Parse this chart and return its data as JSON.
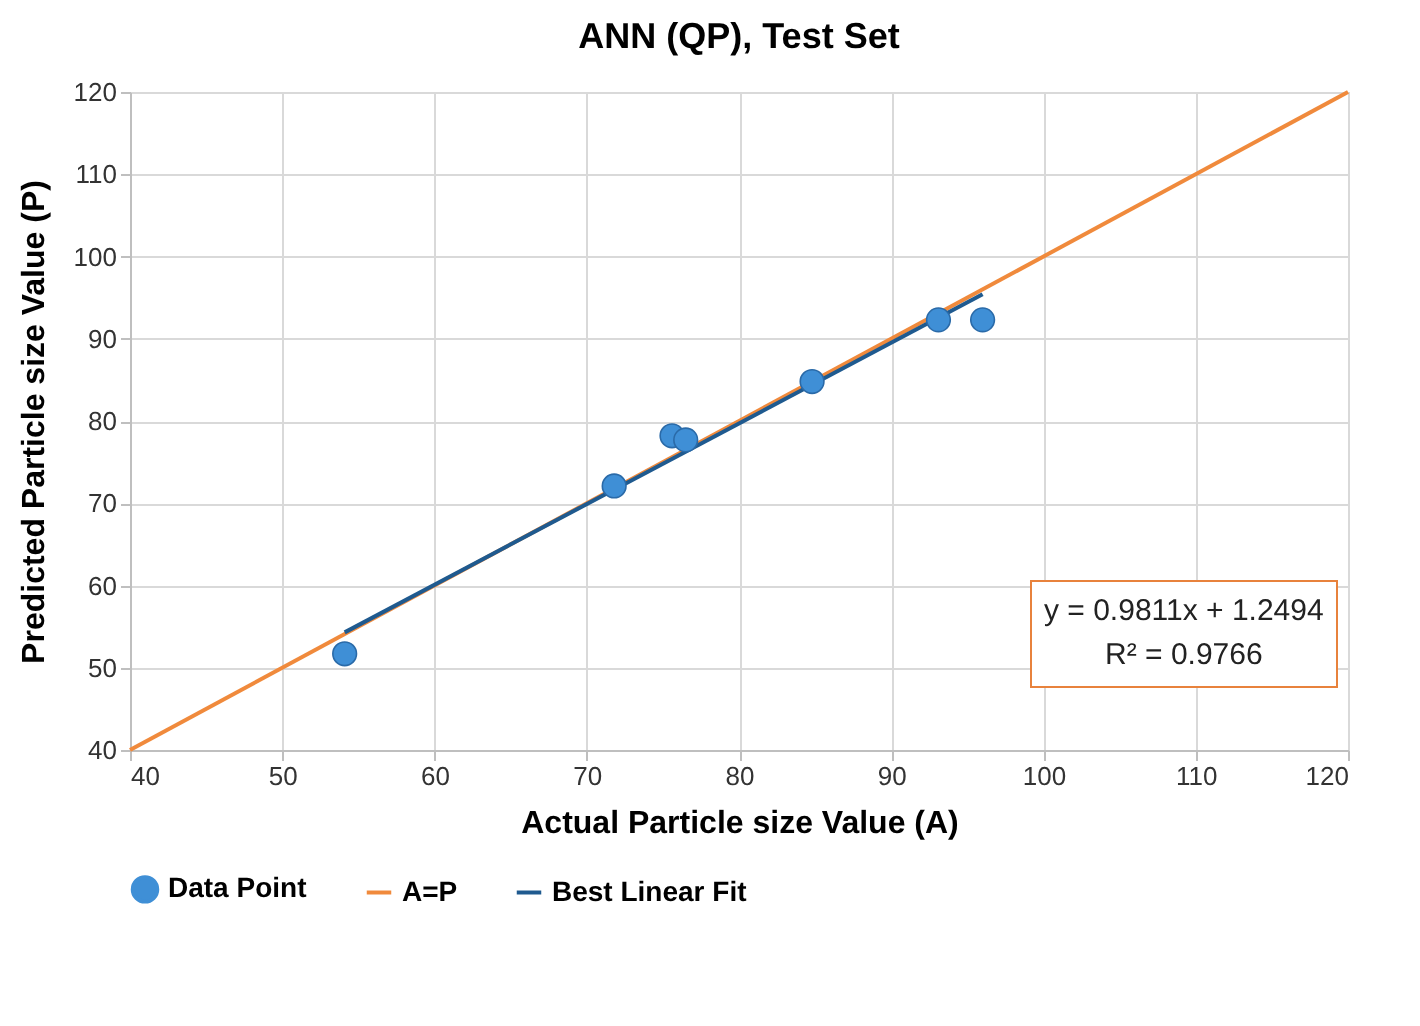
{
  "chart_data": {
    "type": "scatter",
    "title": "ANN (QP), Test Set",
    "xlabel": "Actual Particle size Value (A)",
    "ylabel": "Predicted Particle size  Value (P)",
    "xlim": [
      40,
      120
    ],
    "xticks": [
      40,
      50,
      60,
      70,
      80,
      90,
      100,
      110,
      120
    ],
    "ylim": [
      40,
      120
    ],
    "yticks": [
      40,
      50,
      60,
      70,
      80,
      90,
      100,
      110,
      120
    ],
    "grid": true,
    "legend": "bottom",
    "series": [
      {
        "name": "Data Point",
        "marker": "circle",
        "color": "#3f8fd6",
        "x": [
          54.1,
          71.8,
          75.6,
          76.5,
          84.8,
          93.1,
          96.0
        ],
        "values": [
          51.7,
          72.1,
          78.2,
          77.7,
          84.8,
          92.3,
          92.3
        ]
      },
      {
        "name": "A=P",
        "type": "line",
        "color": "#f08a3c",
        "x": [
          40,
          120
        ],
        "values": [
          40,
          120
        ]
      },
      {
        "name": "Best Linear Fit",
        "type": "line",
        "color": "#1f5a8f",
        "x": [
          54.1,
          96.0
        ],
        "values": [
          54.3,
          95.4
        ]
      }
    ],
    "annotations": [
      "y = 0.9811x + 1.2494",
      "R² = 0.9766"
    ]
  }
}
